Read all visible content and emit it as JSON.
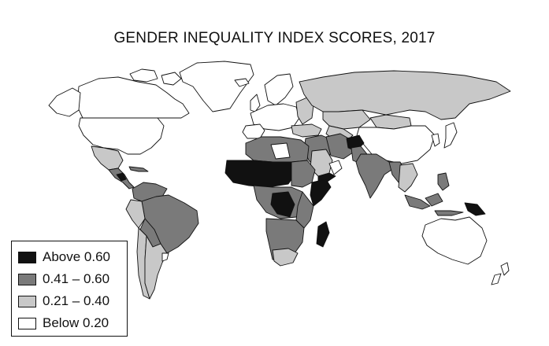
{
  "title": "GENDER INEQUALITY INDEX SCORES, 2017",
  "legend": {
    "items": [
      {
        "label": "Above 0.60",
        "color": "#111111"
      },
      {
        "label": "0.41 – 0.60",
        "color": "#7a7a7a"
      },
      {
        "label": "0.21 – 0.40",
        "color": "#c8c8c8"
      },
      {
        "label": "Below 0.20",
        "color": "#ffffff"
      }
    ]
  },
  "colors": {
    "border": "#111111",
    "background": "#ffffff"
  }
}
